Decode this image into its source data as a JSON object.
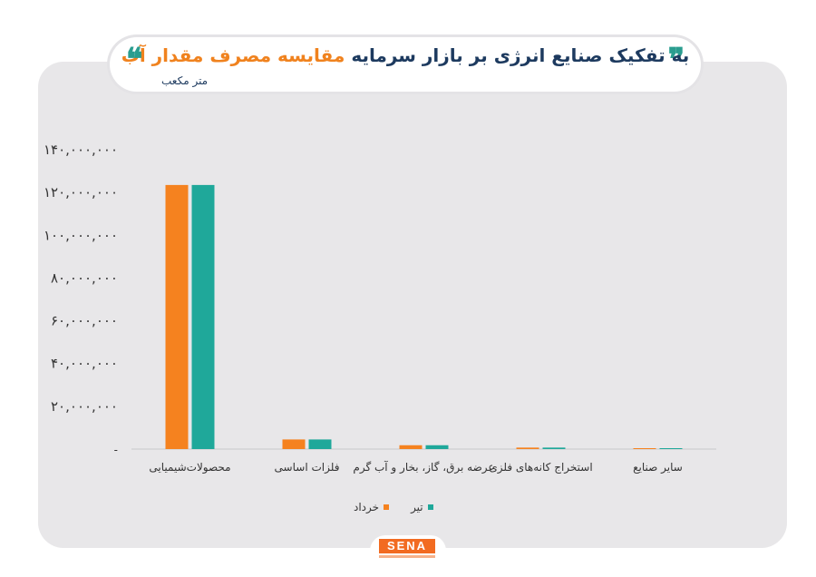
{
  "header": {
    "title_part1": "مقایسه مصرف مقدار آب",
    "title_part2": "به تفکیک صنایع انرژی بر بازار سرمایه",
    "quote_open": "❞",
    "quote_close": "❝",
    "unit": "متر مکعب"
  },
  "colors": {
    "khordad": "#f5821f",
    "tir": "#1fa89a",
    "title_dark": "#1d3a5f",
    "title_orange": "#f0821e",
    "panel": "#e8e7e9"
  },
  "legend": {
    "khordad": "خرداد",
    "tir": "تیر"
  },
  "logo": "SENA",
  "chart_data": {
    "type": "bar",
    "categories": [
      "محصولات‌شیمیایی",
      "فلزات اساسی",
      "عرضه برق، گاز، بخار و آب گرم",
      "استخراج کانه‌های فلزی",
      "سایر صنایع"
    ],
    "series": [
      {
        "name": "خرداد",
        "values": [
          123500000,
          4500000,
          1800000,
          700000,
          250000
        ]
      },
      {
        "name": "تیر",
        "values": [
          123500000,
          4500000,
          1800000,
          700000,
          250000
        ]
      }
    ],
    "ylim": [
      0,
      140000000
    ],
    "yticks": [
      0,
      20000000,
      40000000,
      60000000,
      80000000,
      100000000,
      120000000,
      140000000
    ],
    "ytick_labels": [
      "-",
      "۲۰,۰۰۰,۰۰۰",
      "۴۰,۰۰۰,۰۰۰",
      "۶۰,۰۰۰,۰۰۰",
      "۸۰,۰۰۰,۰۰۰",
      "۱۰۰,۰۰۰,۰۰۰",
      "۱۲۰,۰۰۰,۰۰۰",
      "۱۴۰,۰۰۰,۰۰۰"
    ],
    "legend_position": "bottom-center"
  }
}
